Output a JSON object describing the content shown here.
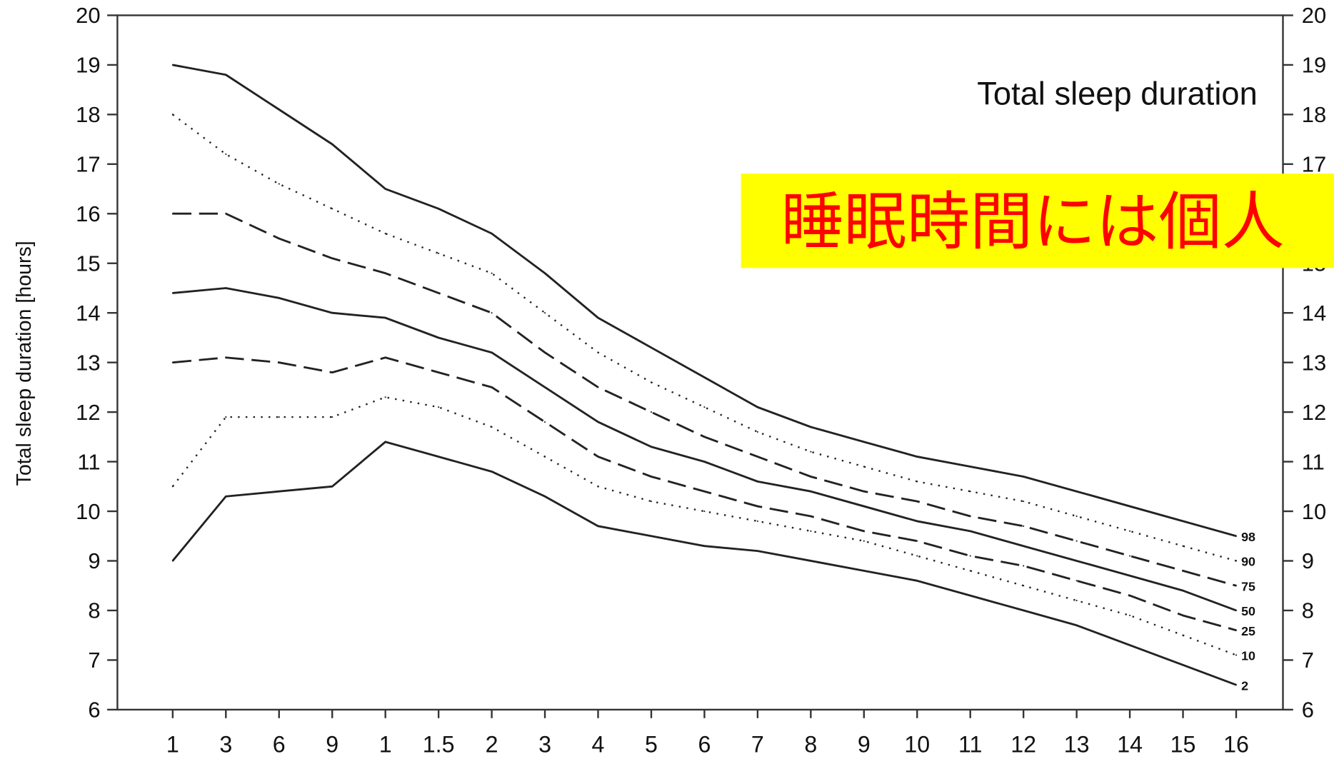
{
  "banner": {
    "text": "睡眠時間には個人",
    "background": "#ffff00",
    "color": "#ff0000"
  },
  "chart_data": {
    "type": "line",
    "title": "Total sleep duration",
    "ylabel": "Total sleep duration [hours]",
    "xlabel": "",
    "ylim": [
      6,
      20
    ],
    "y_ticks": [
      6,
      7,
      8,
      9,
      10,
      11,
      12,
      13,
      14,
      15,
      16,
      17,
      18,
      19,
      20
    ],
    "x": [
      "1",
      "3",
      "6",
      "9",
      "1",
      "1.5",
      "2",
      "3",
      "4",
      "5",
      "6",
      "7",
      "8",
      "9",
      "10",
      "11",
      "12",
      "13",
      "14",
      "15",
      "16"
    ],
    "grid": false,
    "series": [
      {
        "name": "98",
        "style": "solid",
        "values": [
          19.0,
          18.8,
          18.1,
          17.4,
          16.5,
          16.1,
          15.6,
          14.8,
          13.9,
          13.3,
          12.7,
          12.1,
          11.7,
          11.4,
          11.1,
          10.9,
          10.7,
          10.4,
          10.1,
          9.8,
          9.5
        ]
      },
      {
        "name": "90",
        "style": "dotted",
        "values": [
          18.0,
          17.2,
          16.6,
          16.1,
          15.6,
          15.2,
          14.8,
          14.0,
          13.2,
          12.6,
          12.1,
          11.6,
          11.2,
          10.9,
          10.6,
          10.4,
          10.2,
          9.9,
          9.6,
          9.3,
          9.0
        ]
      },
      {
        "name": "75",
        "style": "dashed",
        "values": [
          16.0,
          16.0,
          15.5,
          15.1,
          14.8,
          14.4,
          14.0,
          13.2,
          12.5,
          12.0,
          11.5,
          11.1,
          10.7,
          10.4,
          10.2,
          9.9,
          9.7,
          9.4,
          9.1,
          8.8,
          8.5
        ]
      },
      {
        "name": "50",
        "style": "solid",
        "values": [
          14.4,
          14.5,
          14.3,
          14.0,
          13.9,
          13.5,
          13.2,
          12.5,
          11.8,
          11.3,
          11.0,
          10.6,
          10.4,
          10.1,
          9.8,
          9.6,
          9.3,
          9.0,
          8.7,
          8.4,
          8.0
        ]
      },
      {
        "name": "25",
        "style": "dashed",
        "values": [
          13.0,
          13.1,
          13.0,
          12.8,
          13.1,
          12.8,
          12.5,
          11.8,
          11.1,
          10.7,
          10.4,
          10.1,
          9.9,
          9.6,
          9.4,
          9.1,
          8.9,
          8.6,
          8.3,
          7.9,
          7.6
        ]
      },
      {
        "name": "10",
        "style": "dotted",
        "values": [
          10.5,
          11.9,
          11.9,
          11.9,
          12.3,
          12.1,
          11.7,
          11.1,
          10.5,
          10.2,
          10.0,
          9.8,
          9.6,
          9.4,
          9.1,
          8.8,
          8.5,
          8.2,
          7.9,
          7.5,
          7.1
        ]
      },
      {
        "name": "2",
        "style": "solid",
        "values": [
          9.0,
          10.3,
          10.4,
          10.5,
          11.4,
          11.1,
          10.8,
          10.3,
          9.7,
          9.5,
          9.3,
          9.2,
          9.0,
          8.8,
          8.6,
          8.3,
          8.0,
          7.7,
          7.3,
          6.9,
          6.5
        ]
      }
    ]
  }
}
